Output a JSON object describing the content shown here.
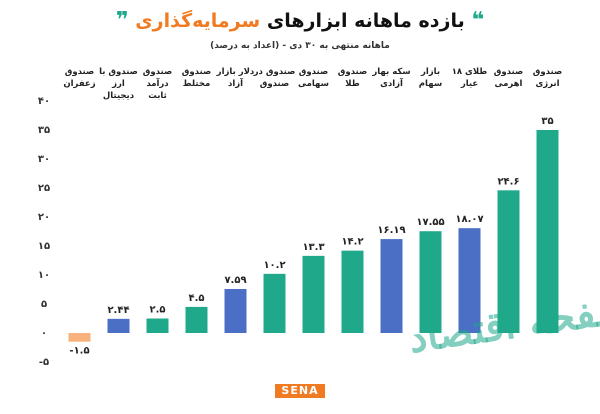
{
  "chart_data": {
    "type": "bar",
    "title": "بازده ماهانه ابزارهای",
    "title_highlight": "سرمایه‌گذاری",
    "subtitle": "ماهانه منتهی به ۳۰ دی - (اعداد به درصد)",
    "categories": [
      "صندوق زعفران",
      "صندوق با ارز دیجیتال",
      "صندوق درآمد ثابت",
      "صندوق مختلط",
      "دلار بازار آزاد",
      "صندوق در صندوق",
      "صندوق سهامی",
      "صندوق طلا",
      "سکه بهار آزادی",
      "بازار سهام",
      "طلای ۱۸ عیار",
      "صندوق اهرمی",
      "صندوق انرژی"
    ],
    "values": [
      -1.5,
      2.44,
      2.5,
      4.5,
      7.59,
      10.2,
      13.3,
      14.2,
      16.19,
      17.55,
      18.07,
      24.6,
      35
    ],
    "value_labels": [
      "-۱.۵",
      "۲.۴۴",
      "۲.۵",
      "۴.۵",
      "۷.۵۹",
      "۱۰.۲",
      "۱۳.۳",
      "۱۴.۲",
      "۱۶.۱۹",
      "۱۷.۵۵",
      "۱۸.۰۷",
      "۲۴.۶",
      "۳۵"
    ],
    "colors": [
      "#f7b27e",
      "#4a6fc4",
      "#1fa88a",
      "#1fa88a",
      "#4a6fc4",
      "#1fa88a",
      "#1fa88a",
      "#1fa88a",
      "#4a6fc4",
      "#1fa88a",
      "#4a6fc4",
      "#1fa88a",
      "#1fa88a"
    ],
    "ylim": [
      -5,
      40
    ],
    "yticks": [
      {
        "value": -5,
        "label": "-۵"
      },
      {
        "value": 0,
        "label": "۰"
      },
      {
        "value": 5,
        "label": "۵"
      },
      {
        "value": 10,
        "label": "۱۰"
      },
      {
        "value": 15,
        "label": "۱۵"
      },
      {
        "value": 20,
        "label": "۲۰"
      },
      {
        "value": 25,
        "label": "۲۵"
      },
      {
        "value": 30,
        "label": "۳۰"
      },
      {
        "value": 35,
        "label": "۳۵"
      },
      {
        "value": 40,
        "label": "۴۰"
      }
    ],
    "grid": false
  },
  "logo": "SENA",
  "watermark": "صفحه اقتصاد"
}
